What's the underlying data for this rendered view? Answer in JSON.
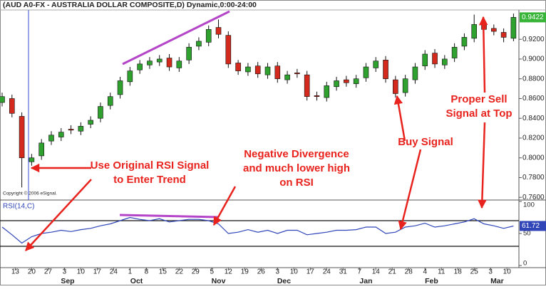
{
  "chart_data": {
    "type": "candlestick",
    "title": "(AUD A0-FX - AUSTRALIA DOLLAR COMPOSITE,D) Dynamic,0:00-24:00",
    "copyright": "Copyright © 2006 eSignal.",
    "x": [
      0,
      3,
      6,
      9,
      12,
      15,
      18,
      21,
      24,
      27,
      30,
      33,
      36,
      39,
      42,
      45,
      48,
      51,
      54,
      57,
      60,
      63,
      66,
      69,
      72,
      75,
      78,
      81,
      84,
      87,
      90,
      93,
      96,
      99,
      102,
      105,
      108,
      111,
      114,
      117,
      120,
      123,
      126,
      129,
      132,
      135,
      138,
      141,
      144,
      147,
      150,
      153,
      156
    ],
    "open": [
      0.856,
      0.86,
      0.842,
      0.796,
      0.802,
      0.817,
      0.821,
      0.829,
      0.827,
      0.834,
      0.84,
      0.853,
      0.864,
      0.877,
      0.889,
      0.894,
      0.897,
      0.901,
      0.891,
      0.899,
      0.913,
      0.917,
      0.932,
      0.924,
      0.896,
      0.887,
      0.893,
      0.884,
      0.893,
      0.879,
      0.886,
      0.884,
      0.863,
      0.861,
      0.872,
      0.879,
      0.875,
      0.881,
      0.891,
      0.899,
      0.879,
      0.866,
      0.879,
      0.893,
      0.906,
      0.894,
      0.901,
      0.913,
      0.921,
      0.936,
      0.931,
      0.927,
      0.921
    ],
    "high": [
      0.866,
      0.864,
      0.846,
      0.804,
      0.819,
      0.827,
      0.83,
      0.833,
      0.836,
      0.842,
      0.856,
      0.866,
      0.882,
      0.892,
      0.899,
      0.902,
      0.904,
      0.905,
      0.902,
      0.916,
      0.922,
      0.934,
      0.94,
      0.928,
      0.899,
      0.896,
      0.897,
      0.896,
      0.897,
      0.888,
      0.89,
      0.888,
      0.867,
      0.877,
      0.882,
      0.883,
      0.884,
      0.896,
      0.902,
      0.903,
      0.883,
      0.884,
      0.896,
      0.909,
      0.91,
      0.904,
      0.916,
      0.926,
      0.945,
      0.94,
      0.935,
      0.931,
      0.946
    ],
    "low": [
      0.852,
      0.841,
      0.77,
      0.792,
      0.798,
      0.813,
      0.817,
      0.824,
      0.823,
      0.83,
      0.836,
      0.849,
      0.86,
      0.873,
      0.885,
      0.89,
      0.893,
      0.888,
      0.887,
      0.895,
      0.909,
      0.913,
      0.921,
      0.891,
      0.884,
      0.883,
      0.881,
      0.88,
      0.876,
      0.875,
      0.881,
      0.858,
      0.858,
      0.857,
      0.868,
      0.872,
      0.871,
      0.877,
      0.887,
      0.876,
      0.861,
      0.862,
      0.875,
      0.889,
      0.891,
      0.89,
      0.897,
      0.909,
      0.917,
      0.926,
      0.924,
      0.917,
      0.918
    ],
    "close": [
      0.862,
      0.845,
      0.8,
      0.8,
      0.815,
      0.823,
      0.826,
      0.828,
      0.832,
      0.838,
      0.852,
      0.862,
      0.878,
      0.888,
      0.895,
      0.898,
      0.9,
      0.892,
      0.898,
      0.912,
      0.918,
      0.93,
      0.925,
      0.895,
      0.888,
      0.892,
      0.885,
      0.892,
      0.88,
      0.884,
      0.885,
      0.862,
      0.862,
      0.873,
      0.878,
      0.876,
      0.88,
      0.892,
      0.898,
      0.88,
      0.865,
      0.88,
      0.892,
      0.905,
      0.895,
      0.9,
      0.912,
      0.922,
      0.935,
      0.93,
      0.928,
      0.922,
      0.9422
    ],
    "up_color": "#2ea12e",
    "down_color": "#d42a1e",
    "xlim": [
      0,
      157
    ],
    "xticks": [
      {
        "value": 4,
        "label": "13"
      },
      {
        "value": 9,
        "label": "20"
      },
      {
        "value": 14,
        "label": "27"
      },
      {
        "value": 19,
        "label": "3"
      },
      {
        "value": 24,
        "label": "10"
      },
      {
        "value": 29,
        "label": "17"
      },
      {
        "value": 34,
        "label": "24"
      },
      {
        "value": 39,
        "label": "1"
      },
      {
        "value": 44,
        "label": "8"
      },
      {
        "value": 49,
        "label": "15"
      },
      {
        "value": 54,
        "label": "22"
      },
      {
        "value": 59,
        "label": "29"
      },
      {
        "value": 64,
        "label": "5"
      },
      {
        "value": 69,
        "label": "12"
      },
      {
        "value": 74,
        "label": "19"
      },
      {
        "value": 79,
        "label": "26"
      },
      {
        "value": 84,
        "label": "3"
      },
      {
        "value": 89,
        "label": "10"
      },
      {
        "value": 94,
        "label": "17"
      },
      {
        "value": 99,
        "label": "24"
      },
      {
        "value": 104,
        "label": "31"
      },
      {
        "value": 109,
        "label": "7"
      },
      {
        "value": 114,
        "label": "14"
      },
      {
        "value": 119,
        "label": "21"
      },
      {
        "value": 124,
        "label": "28"
      },
      {
        "value": 129,
        "label": "4"
      },
      {
        "value": 134,
        "label": "11"
      },
      {
        "value": 139,
        "label": "18"
      },
      {
        "value": 144,
        "label": "25"
      },
      {
        "value": 149,
        "label": "3"
      },
      {
        "value": 154,
        "label": "10"
      }
    ],
    "month_labels": [
      {
        "value": 20,
        "label": "Sep"
      },
      {
        "value": 41,
        "label": "Oct"
      },
      {
        "value": 66,
        "label": "Nov"
      },
      {
        "value": 86,
        "label": "Dec"
      },
      {
        "value": 111,
        "label": "Jan"
      },
      {
        "value": 131,
        "label": "Feb"
      },
      {
        "value": 151,
        "label": "Mar"
      }
    ],
    "ylim": [
      0.758,
      0.954
    ],
    "yticks": [
      {
        "value": 0.76,
        "label": "0.7600"
      },
      {
        "value": 0.78,
        "label": "0.7800"
      },
      {
        "value": 0.8,
        "label": "0.8000"
      },
      {
        "value": 0.82,
        "label": "0.8200"
      },
      {
        "value": 0.84,
        "label": "0.8400"
      },
      {
        "value": 0.86,
        "label": "0.8600"
      },
      {
        "value": 0.88,
        "label": "0.8800"
      },
      {
        "value": 0.9,
        "label": "0.9000"
      },
      {
        "value": 0.92,
        "label": "0.9200"
      }
    ],
    "indicator": {
      "type": "line",
      "name": "RSI(14,C)",
      "color": "#2f45b8",
      "values": [
        60,
        48,
        35,
        45,
        50,
        52,
        55,
        53,
        56,
        58,
        62,
        65,
        70,
        75,
        72,
        70,
        73,
        68,
        70,
        72,
        72,
        70,
        65,
        50,
        52,
        56,
        52,
        55,
        50,
        55,
        55,
        48,
        50,
        52,
        55,
        55,
        56,
        60,
        60,
        50,
        52,
        60,
        62,
        66,
        60,
        62,
        65,
        68,
        73,
        65,
        62,
        58,
        61.72
      ],
      "ylim": [
        0,
        100
      ],
      "yticks": [
        0,
        50,
        100
      ],
      "levels": [
        30,
        70
      ]
    },
    "annotations": [
      {
        "lines": [
          "Use Original RSI Signal",
          "to Enter Trend"
        ]
      },
      {
        "lines": [
          "Negative Divergence",
          "and much lower high",
          "on RSI"
        ]
      },
      {
        "lines": [
          "Buy Signal"
        ]
      },
      {
        "lines": [
          "Proper Sell",
          "Signal at Top"
        ]
      }
    ]
  }
}
